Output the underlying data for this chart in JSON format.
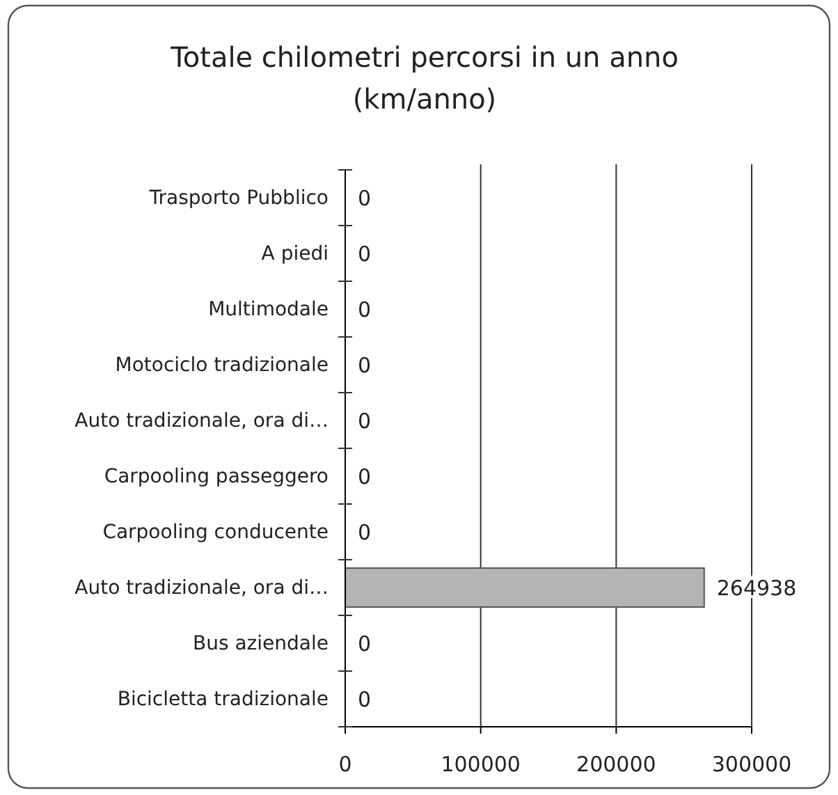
{
  "chart_data": {
    "type": "bar",
    "orientation": "horizontal",
    "title": "Totale chilometri percorsi in un anno\n(km/anno)",
    "categories": [
      "Trasporto Pubblico",
      "A piedi",
      "Multimodale",
      "Motociclo tradizionale",
      "Auto tradizionale, ora di…",
      "Carpooling passeggero",
      "Carpooling conducente",
      "Auto tradizionale, ora di…",
      "Bus aziendale",
      "Bicicletta tradizionale"
    ],
    "values": [
      0,
      0,
      0,
      0,
      0,
      0,
      0,
      264938,
      0,
      0
    ],
    "color": "#b3b3b3",
    "xlim": [
      0,
      300000
    ],
    "xticks": [
      0,
      100000,
      200000,
      300000
    ],
    "grid": "x",
    "data_labels": true
  }
}
